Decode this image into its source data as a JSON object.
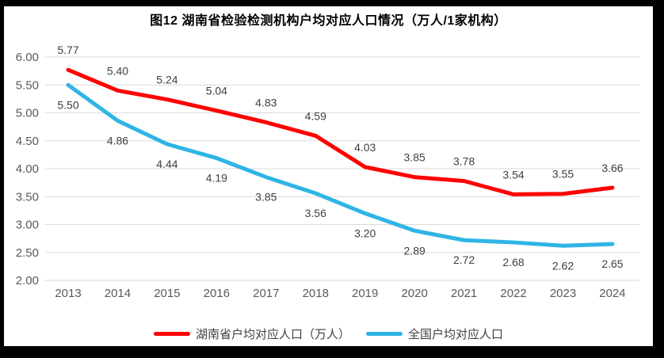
{
  "chart_data": {
    "type": "line",
    "title": "图12 湖南省检验检测机构户均对应人口情况（万人/1家机构）",
    "categories": [
      "2013",
      "2014",
      "2015",
      "2016",
      "2017",
      "2018",
      "2019",
      "2020",
      "2021",
      "2022",
      "2023",
      "2024"
    ],
    "series": [
      {
        "name": "湖南省户均对应人口（万人）",
        "color": "#FF0000",
        "label_position": "above",
        "values": [
          5.77,
          5.4,
          5.24,
          5.04,
          4.83,
          4.59,
          4.03,
          3.85,
          3.78,
          3.54,
          3.55,
          3.66
        ]
      },
      {
        "name": "全国户均对应人口",
        "color": "#2FB4E6",
        "label_position": "below",
        "values": [
          5.5,
          4.86,
          4.44,
          4.19,
          3.85,
          3.56,
          3.2,
          2.89,
          2.72,
          2.68,
          2.62,
          2.65
        ]
      }
    ],
    "xlabel": "",
    "ylabel": "",
    "y_axis": {
      "min": 2.0,
      "max": 6.0,
      "step": 0.5,
      "tick_labels": [
        "2.00",
        "2.50",
        "3.00",
        "3.50",
        "4.00",
        "4.50",
        "5.00",
        "5.50",
        "6.00"
      ]
    },
    "grid": true,
    "legend_position": "bottom",
    "styles": {
      "grid_color": "#D9D9D9",
      "tick_label_color": "#595959",
      "data_label_color": "#404040",
      "title_color": "#000000",
      "legend_text_color": "#404040",
      "canvas_background": "#FFFFFF",
      "frame_border_color": "#000000"
    }
  }
}
